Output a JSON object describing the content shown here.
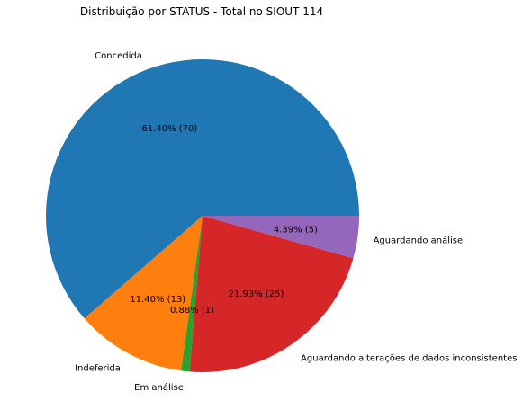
{
  "chart_data": {
    "type": "pie",
    "title": "Distribuição por STATUS - Total no SIOUT 114",
    "slices": [
      {
        "label": "Concedida",
        "value": 70,
        "pct_label": "61.40%  (70)",
        "color": "#1f77b4"
      },
      {
        "label": "Indeferida",
        "value": 13,
        "pct_label": "11.40%  (13)",
        "color": "#ff7f0e"
      },
      {
        "label": "Em análise",
        "value": 1,
        "pct_label": "0.88%  (1)",
        "color": "#2ca02c"
      },
      {
        "label": "Aguardando alterações de dados inconsistentes",
        "value": 25,
        "pct_label": "21.93%  (25)",
        "color": "#d62728"
      },
      {
        "label": "Aguardando análise",
        "value": 5,
        "pct_label": "4.39%  (5)",
        "color": "#9467bd"
      }
    ],
    "start_angle_deg": 0,
    "direction": "counterclockwise",
    "legend": "none"
  }
}
